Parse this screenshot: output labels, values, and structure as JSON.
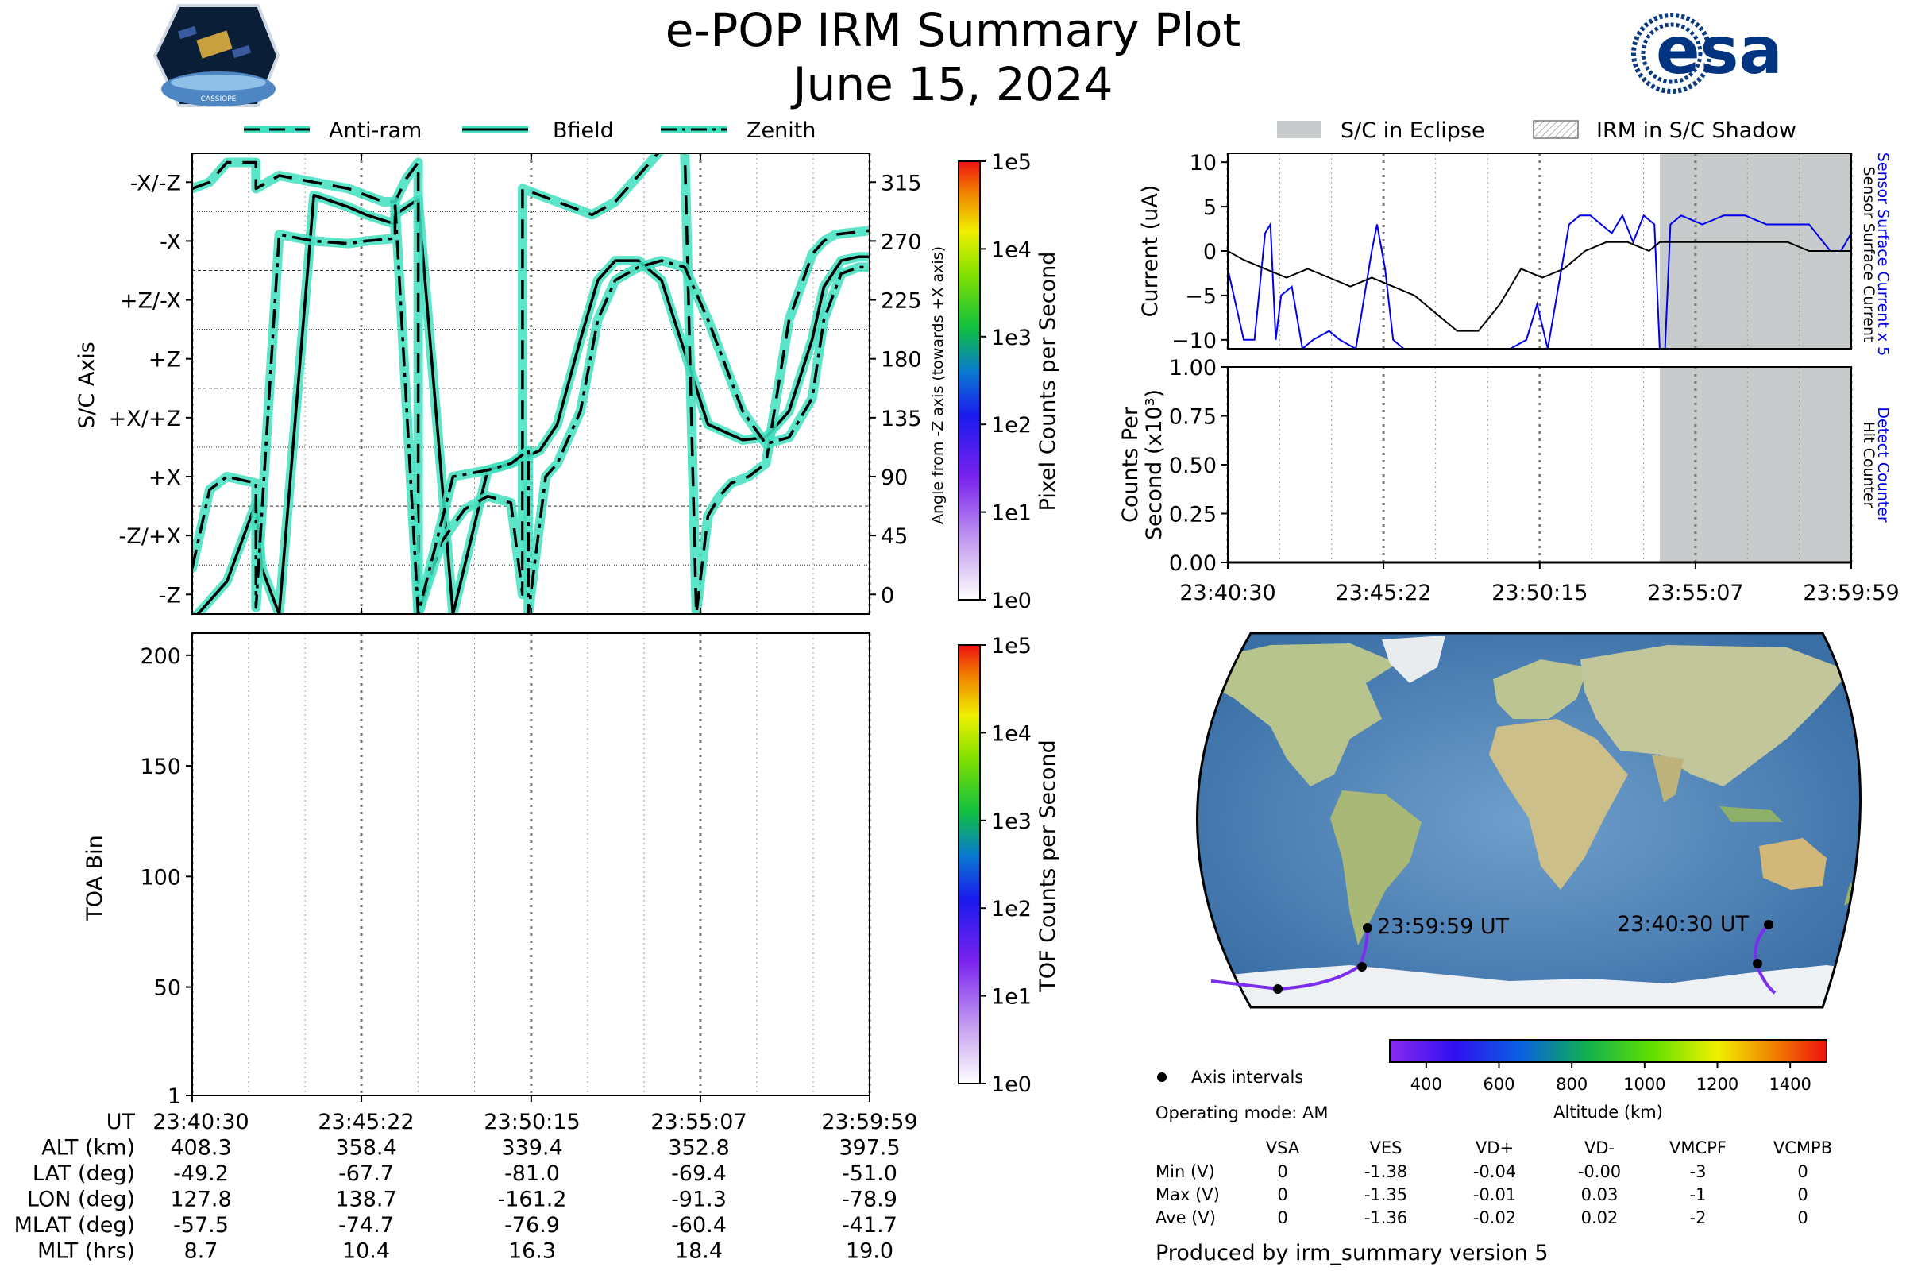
{
  "header": {
    "title": "e-POP IRM Summary Plot",
    "date": "June 15, 2024",
    "mission_logo_text": "CASSIOPE",
    "agency_logo_text": "esa"
  },
  "attitude_panel": {
    "legend": [
      "Anti-ram",
      "Bfield",
      "Zenith"
    ],
    "ylabel_left": "S/C Axis",
    "ylabel_right": "Angle from -Z axis (towards +X axis)",
    "axis_ticks": [
      "-X/-Z",
      "-X",
      "+Z/-X",
      "+Z",
      "+X/+Z",
      "+X",
      "-Z/+X",
      "-Z"
    ],
    "angle_ticks": [
      "315",
      "270",
      "225",
      "180",
      "135",
      "90",
      "45",
      "0"
    ],
    "colorbar_label": "Pixel Counts per Second",
    "colorbar_ticks": [
      "1e5",
      "1e4",
      "1e3",
      "1e2",
      "1e1",
      "1e0"
    ]
  },
  "toa_panel": {
    "ylabel": "TOA Bin",
    "yticks": [
      "200",
      "150",
      "100",
      "50",
      "1"
    ],
    "colorbar_label": "TOF Counts per Second",
    "colorbar_ticks": [
      "1e5",
      "1e4",
      "1e3",
      "1e2",
      "1e1",
      "1e0"
    ]
  },
  "ephemeris": {
    "rows": [
      {
        "label": "UT",
        "values": [
          "23:40:30",
          "23:45:22",
          "23:50:15",
          "23:55:07",
          "23:59:59"
        ]
      },
      {
        "label": "ALT (km)",
        "values": [
          "408.3",
          "358.4",
          "339.4",
          "352.8",
          "397.5"
        ]
      },
      {
        "label": "LAT (deg)",
        "values": [
          "-49.2",
          "-67.7",
          "-81.0",
          "-69.4",
          "-51.0"
        ]
      },
      {
        "label": "LON (deg)",
        "values": [
          "127.8",
          "138.7",
          "-161.2",
          "-91.3",
          "-78.9"
        ]
      },
      {
        "label": "MLAT (deg)",
        "values": [
          "-57.5",
          "-74.7",
          "-76.9",
          "-60.4",
          "-41.7"
        ]
      },
      {
        "label": "MLT (hrs)",
        "values": [
          "8.7",
          "10.4",
          "16.3",
          "18.4",
          "19.0"
        ]
      }
    ]
  },
  "current_panel": {
    "legend": [
      "S/C in Eclipse",
      "IRM in S/C Shadow"
    ],
    "ylabel": "Current (uA)",
    "yticks": [
      "10",
      "5",
      "0",
      "−5",
      "−10"
    ],
    "right_label_blue": "Sensor Surface Current x 5",
    "right_label_black": "Sensor Surface Current",
    "line_colors": {
      "sensor_surface_current_x5": "#0000ee",
      "sensor_surface_current": "#000000"
    },
    "eclipse_color": "#c8cbcb"
  },
  "counts_panel": {
    "ylabel_line1": "Counts Per",
    "ylabel_line2": "Second (x10³)",
    "yticks": [
      "1.00",
      "0.75",
      "0.50",
      "0.25",
      "0.00"
    ],
    "right_label_blue": "Detect Counter",
    "right_label_black": "Hit Counter",
    "xticks": [
      "23:40:30",
      "23:45:22",
      "23:50:15",
      "23:55:07",
      "23:59:59"
    ]
  },
  "map_panel": {
    "start_label": "23:40:30 UT",
    "end_label": "23:59:59 UT",
    "axis_intervals_label": "Axis intervals",
    "operating_mode": "Operating mode: AM",
    "altitude_label": "Altitude (km)",
    "altitude_ticks": [
      "400",
      "600",
      "800",
      "1000",
      "1200",
      "1400"
    ]
  },
  "voltage_table": {
    "columns": [
      "VSA",
      "VES",
      "VD+",
      "VD-",
      "VMCPF",
      "VCMPB"
    ],
    "rows": [
      {
        "label": "Min (V)",
        "values": [
          "0",
          "-1.38",
          "-0.04",
          "-0.00",
          "-3",
          "0"
        ]
      },
      {
        "label": "Max (V)",
        "values": [
          "0",
          "-1.35",
          "-0.01",
          "0.03",
          "-1",
          "0"
        ]
      },
      {
        "label": "Ave (V)",
        "values": [
          "0",
          "-1.36",
          "-0.02",
          "0.02",
          "-2",
          "0"
        ]
      }
    ]
  },
  "footer": "Produced by irm_summary version 5",
  "chart_data": [
    {
      "type": "line",
      "title": "",
      "x_unit": "UT",
      "x_range": [
        "23:40:30",
        "23:59:59"
      ],
      "xticks": [
        "23:40:30",
        "23:45:22",
        "23:50:15",
        "23:55:07",
        "23:59:59"
      ],
      "ylabel": "S/C Axis",
      "y2label": "Angle from -Z axis (towards +X axis)",
      "ylim": [
        -15,
        337
      ],
      "yticks": [
        0,
        45,
        90,
        135,
        180,
        225,
        270,
        315
      ],
      "grid": true,
      "series": [
        {
          "name": "Bfield",
          "style": "solid",
          "color": "#000000",
          "halo": "#40e0c0",
          "x": [
            "23:40:30",
            "23:41:30",
            "23:42:20",
            "23:42:30",
            "23:43:00",
            "23:44:00",
            "23:45:00",
            "23:45:30",
            "23:46:20",
            "23:46:20",
            "23:47:00",
            "23:48:00",
            "23:49:00",
            "23:49:40",
            "23:50:30",
            "23:51:00",
            "23:51:40",
            "23:52:10",
            "23:52:40",
            "23:53:20",
            "23:54:00",
            "23:54:40",
            "23:55:20",
            "23:56:20",
            "23:57:00",
            "23:57:40",
            "23:58:20",
            "23:58:40",
            "23:59:10",
            "23:59:40",
            "23:59:59"
          ],
          "values": [
            -20,
            10,
            70,
            20,
            -15,
            305,
            296,
            290,
            283,
            290,
            302,
            -15,
            95,
            100,
            110,
            130,
            195,
            240,
            255,
            255,
            240,
            185,
            130,
            118,
            120,
            140,
            195,
            235,
            255,
            258,
            258
          ]
        },
        {
          "name": "Anti-ram",
          "style": "dashed",
          "color": "#000000",
          "halo": "#40e0c0",
          "x": [
            "23:40:30",
            "23:41:00",
            "23:41:30",
            "23:42:20",
            "23:42:20",
            "23:43:00",
            "23:44:00",
            "23:45:00",
            "23:45:30",
            "23:46:00",
            "23:46:20",
            "23:46:40",
            "23:47:00",
            "23:47:00",
            "23:47:40",
            "23:48:20",
            "23:49:00",
            "23:49:40",
            "23:50:00",
            "23:50:00",
            "23:51:00",
            "23:52:00",
            "23:52:40",
            "23:53:20",
            "23:53:40",
            "23:54:00",
            "23:54:20",
            "23:54:40",
            "23:55:00",
            "23:55:20",
            "23:55:40",
            "23:56:00",
            "23:56:30",
            "23:57:00",
            "23:57:40",
            "23:58:20",
            "23:58:40",
            "23:59:00",
            "23:59:59"
          ],
          "values": [
            310,
            315,
            330,
            330,
            310,
            320,
            315,
            310,
            305,
            300,
            300,
            318,
            330,
            -15,
            40,
            65,
            75,
            70,
            0,
            310,
            300,
            290,
            300,
            320,
            330,
            340,
            350,
            340,
            -15,
            60,
            75,
            85,
            90,
            100,
            210,
            260,
            270,
            275,
            278
          ]
        },
        {
          "name": "Zenith",
          "style": "dashdot",
          "color": "#000000",
          "halo": "#40e0c0",
          "x": [
            "23:40:30",
            "23:41:00",
            "23:41:30",
            "23:42:20",
            "23:42:20",
            "23:43:00",
            "23:44:00",
            "23:45:00",
            "23:45:30",
            "23:46:20",
            "23:46:20",
            "23:47:00",
            "23:48:00",
            "23:49:00",
            "23:49:40",
            "23:50:10",
            "23:50:10",
            "23:50:40",
            "23:51:00",
            "23:51:40",
            "23:52:10",
            "23:52:40",
            "23:53:20",
            "23:54:00",
            "23:54:40",
            "23:55:20",
            "23:56:20",
            "23:57:00",
            "23:57:40",
            "23:58:20",
            "23:58:40",
            "23:59:10",
            "23:59:40",
            "23:59:59"
          ],
          "values": [
            20,
            80,
            90,
            85,
            -10,
            275,
            270,
            268,
            270,
            272,
            300,
            -15,
            90,
            95,
            100,
            110,
            -15,
            90,
            100,
            140,
            210,
            240,
            250,
            255,
            250,
            210,
            140,
            115,
            120,
            150,
            210,
            245,
            250,
            250
          ]
        }
      ]
    },
    {
      "type": "heatmap",
      "title": "",
      "ylabel": "TOA Bin",
      "ylim": [
        1,
        210
      ],
      "x_range": [
        "23:40:30",
        "23:59:59"
      ],
      "values": [],
      "colorbar_label": "TOF Counts per Second",
      "colorbar_range": [
        "1e0",
        "1e5"
      ]
    },
    {
      "type": "line",
      "title": "",
      "ylabel": "Current (uA)",
      "ylim": [
        -11,
        11
      ],
      "x_range": [
        "23:40:30",
        "23:59:59"
      ],
      "eclipse_interval": [
        "23:54:00",
        "23:59:59"
      ],
      "series": [
        {
          "name": "Sensor Surface Current x 5",
          "color": "#0000ee",
          "x": [
            "23:40:30",
            "23:41:00",
            "23:41:20",
            "23:41:40",
            "23:41:50",
            "23:42:00",
            "23:42:10",
            "23:42:30",
            "23:42:50",
            "23:43:10",
            "23:43:40",
            "23:44:00",
            "23:44:30",
            "23:45:00",
            "23:45:10",
            "23:45:25",
            "23:45:40",
            "23:46:00",
            "23:46:40",
            "23:47:20",
            "23:48:00",
            "23:48:40",
            "23:49:20",
            "23:49:50",
            "23:50:10",
            "23:50:30",
            "23:50:50",
            "23:51:10",
            "23:51:30",
            "23:51:50",
            "23:52:10",
            "23:52:30",
            "23:52:50",
            "23:53:10",
            "23:53:30",
            "23:53:50",
            "23:54:00",
            "23:54:10",
            "23:54:20",
            "23:54:40",
            "23:55:20",
            "23:56:00",
            "23:56:40",
            "23:57:20",
            "23:58:00",
            "23:58:40",
            "23:59:20",
            "23:59:40",
            "23:59:59"
          ],
          "values": [
            -2,
            -10,
            -10,
            2,
            3,
            -10,
            -5,
            -4,
            -11,
            -10,
            -9,
            -10,
            -11,
            0,
            3,
            -2,
            -10,
            -11,
            -11,
            -11,
            -11,
            -11,
            -11,
            -10,
            -6,
            -11,
            -4,
            3,
            4,
            4,
            3,
            2,
            4,
            1,
            4,
            3,
            -11,
            -11,
            3,
            4,
            3,
            4,
            4,
            3,
            3,
            3,
            0,
            0,
            2
          ]
        },
        {
          "name": "Sensor Surface Current",
          "color": "#000000",
          "x": [
            "23:40:30",
            "23:41:00",
            "23:41:40",
            "23:42:20",
            "23:43:00",
            "23:43:40",
            "23:44:20",
            "23:45:00",
            "23:45:40",
            "23:46:20",
            "23:47:00",
            "23:47:40",
            "23:48:20",
            "23:49:00",
            "23:49:40",
            "23:50:20",
            "23:51:00",
            "23:51:40",
            "23:52:20",
            "23:53:00",
            "23:53:40",
            "23:54:00",
            "23:54:40",
            "23:55:20",
            "23:56:00",
            "23:56:40",
            "23:57:20",
            "23:58:00",
            "23:58:40",
            "23:59:20",
            "23:59:59"
          ],
          "values": [
            0,
            -1,
            -2,
            -3,
            -2,
            -3,
            -4,
            -3,
            -4,
            -5,
            -7,
            -9,
            -9,
            -6,
            -2,
            -3,
            -2,
            0,
            1,
            1,
            0,
            1,
            1,
            1,
            1,
            1,
            1,
            1,
            0,
            0,
            0
          ]
        }
      ]
    },
    {
      "type": "line",
      "title": "",
      "ylabel": "Counts Per Second (x10³)",
      "ylim": [
        0,
        1.0
      ],
      "x_range": [
        "23:40:30",
        "23:59:59"
      ],
      "eclipse_interval": [
        "23:54:00",
        "23:59:59"
      ],
      "series": [
        {
          "name": "Detect Counter",
          "color": "#0000ee",
          "x": [
            "23:40:30",
            "23:59:59"
          ],
          "values": [
            0,
            0
          ]
        },
        {
          "name": "Hit Counter",
          "color": "#000000",
          "x": [
            "23:40:30",
            "23:59:59"
          ],
          "values": [
            0,
            0
          ]
        }
      ]
    },
    {
      "type": "scatter",
      "title": "",
      "description_key": "orbit_track",
      "x_unit": "longitude (deg)",
      "y_unit": "latitude (deg)",
      "x": [
        127.8,
        138.7,
        -161.2,
        -91.3,
        -78.9
      ],
      "values": [
        -49.2,
        -67.7,
        -81.0,
        -69.4,
        -51.0
      ],
      "colorbar_label": "Altitude (km)",
      "colorbar_range": [
        300,
        1500
      ]
    }
  ]
}
